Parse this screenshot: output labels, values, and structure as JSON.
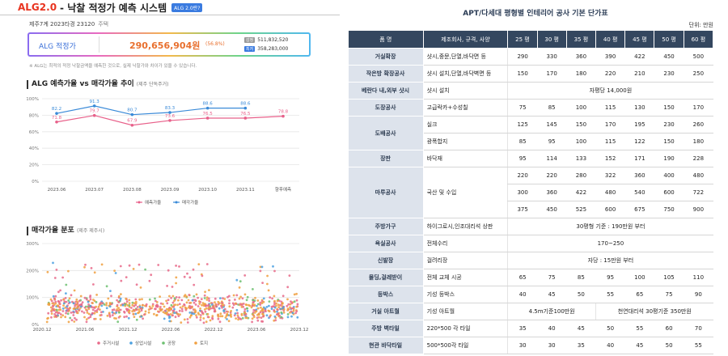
{
  "header": {
    "brand": "ALG2.0",
    "title": "- 낙찰 적정가 예측 시스템",
    "badge": "ALG 2.0란?"
  },
  "property": {
    "info": "제주7계 2023타경 23120",
    "type": "주택"
  },
  "price": {
    "label": "ALG 적정가",
    "value": "290,656,904원",
    "percent": "(56.8%)",
    "rows": [
      {
        "tag": "감정",
        "value": "511,832,520"
      },
      {
        "tag": "최저",
        "value": "358,283,000"
      }
    ]
  },
  "note": "※ ALG는 최적의 적정 낙찰금액을 예측한 것으로, 실제 낙찰가와 차이가 있을 수 있습니다.",
  "section1": {
    "title": "ALG 예측가율 vs 매각가율 추이",
    "sub": "(제주 단독주거)"
  },
  "section2": {
    "title": "매각가율 분포",
    "sub": "(제주 제주시)"
  },
  "chart_data": [
    {
      "type": "line",
      "title": "ALG 예측가율 vs 매각가율 추이",
      "categories": [
        "2023.06",
        "2023.07",
        "2023.08",
        "2023.09",
        "2023.10",
        "2023.11",
        "향후예측"
      ],
      "ylim": [
        0,
        100
      ],
      "yticks": [
        "0%",
        "20%",
        "40%",
        "60%",
        "80%",
        "100%"
      ],
      "grid": true,
      "legend": "bottom",
      "series": [
        {
          "name": "예측가율",
          "color": "#e8608a",
          "values": [
            71.8,
            79.7,
            67.9,
            73.6,
            76.5,
            76.5,
            78.8
          ],
          "labels": [
            "71.8",
            "79.7",
            "67.9",
            "73.6",
            "76.5",
            "76.5",
            "78.8"
          ]
        },
        {
          "name": "매각가율",
          "color": "#3a8ad8",
          "values": [
            82.2,
            91.3,
            80.7,
            83.3,
            88.6,
            88.6,
            null
          ],
          "labels": [
            "82.2",
            "91.3",
            "80.7",
            "83.3",
            "88.6",
            "88.6",
            ""
          ]
        }
      ]
    },
    {
      "type": "scatter",
      "title": "매각가율 분포",
      "ylim": [
        0,
        300
      ],
      "yticks": [
        "0%",
        "100%",
        "200%",
        "300%"
      ],
      "xticks": [
        "2020.12",
        "2021.06",
        "2021.12",
        "2022.06",
        "2022.12",
        "2023.06",
        "2023.12"
      ],
      "legend": "bottom",
      "series": [
        {
          "name": "주거시설",
          "color": "#e86a8a"
        },
        {
          "name": "상업시설",
          "color": "#4aa0e0"
        },
        {
          "name": "공장",
          "color": "#6cc070"
        },
        {
          "name": "토지",
          "color": "#f0a040"
        }
      ]
    }
  ],
  "table": {
    "title": "APT/다세대 평형별 인테리어 공사 기본 단가표",
    "unit": "단위: 만원",
    "headers": [
      "품 명",
      "제조회사, 규격, 사양",
      "25 평",
      "30 평",
      "35 평",
      "40 평",
      "45 평",
      "50 평",
      "60 평"
    ],
    "rows": [
      {
        "cat": "거실확장",
        "span": 1,
        "spec": "샷시,중문,단열,바닥면 등",
        "vals": [
          "290",
          "330",
          "360",
          "390",
          "422",
          "450",
          "500"
        ]
      },
      {
        "cat": "작은방 확장공사",
        "span": 1,
        "spec": "샷시 설치,단열,바닥벽면 등",
        "vals": [
          "150",
          "170",
          "180",
          "220",
          "210",
          "230",
          "250"
        ]
      },
      {
        "cat": "베란다 내,외부 샷시",
        "span": 1,
        "spec": "샷시 설치",
        "merged": "자평당 14,000원"
      },
      {
        "cat": "도장공사",
        "span": 1,
        "spec": "고급락카+수성칠",
        "vals": [
          "75",
          "85",
          "100",
          "115",
          "130",
          "150",
          "170"
        ]
      },
      {
        "cat": "도배공사",
        "span": 2,
        "spec": "실크",
        "vals": [
          "125",
          "145",
          "150",
          "170",
          "195",
          "230",
          "260"
        ]
      },
      {
        "cat": "",
        "span": 0,
        "spec": "광폭합지",
        "vals": [
          "85",
          "95",
          "100",
          "115",
          "122",
          "150",
          "180"
        ]
      },
      {
        "cat": "장판",
        "span": 1,
        "spec": "바닥재",
        "vals": [
          "95",
          "114",
          "133",
          "152",
          "171",
          "190",
          "228"
        ]
      },
      {
        "cat": "마루공사",
        "span": 3,
        "spec": "국산 및 수입",
        "vals": [
          "220",
          "220",
          "280",
          "322",
          "360",
          "400",
          "480"
        ]
      },
      {
        "cat": "",
        "span": 0,
        "spec": "",
        "vals": [
          "300",
          "360",
          "422",
          "480",
          "540",
          "600",
          "722"
        ]
      },
      {
        "cat": "",
        "span": 0,
        "spec": "",
        "vals": [
          "375",
          "450",
          "525",
          "600",
          "675",
          "750",
          "900"
        ]
      },
      {
        "cat": "주방가구",
        "span": 1,
        "spec": "하이그로시,인조대리석 상판",
        "merged": "30평형 기준 : 190만원 부터"
      },
      {
        "cat": "욕실공사",
        "span": 1,
        "spec": "전체수리",
        "merged": "170~250"
      },
      {
        "cat": "신발장",
        "span": 1,
        "spec": "걸려리장",
        "merged": "자당 : 15만원 부터"
      },
      {
        "cat": "몰딩,걸레받이",
        "span": 1,
        "spec": "전체 교체 시공",
        "vals": [
          "65",
          "75",
          "85",
          "95",
          "100",
          "105",
          "110"
        ]
      },
      {
        "cat": "등박스",
        "span": 1,
        "spec": "기성 등박스",
        "vals": [
          "40",
          "45",
          "50",
          "55",
          "65",
          "75",
          "90"
        ]
      },
      {
        "cat": "거실 아트월",
        "span": 1,
        "spec": "기성 아트월",
        "split": [
          "4.5m기준100만원",
          "천연대리석 30평기준 350만원"
        ]
      },
      {
        "cat": "주방 벽타일",
        "span": 1,
        "spec": "220*500 각 타일",
        "vals": [
          "35",
          "40",
          "45",
          "50",
          "55",
          "60",
          "70"
        ]
      },
      {
        "cat": "현관 바닥타일",
        "span": 1,
        "spec": "500*500각 타일",
        "vals": [
          "30",
          "30",
          "35",
          "40",
          "45",
          "50",
          "55"
        ]
      }
    ]
  }
}
